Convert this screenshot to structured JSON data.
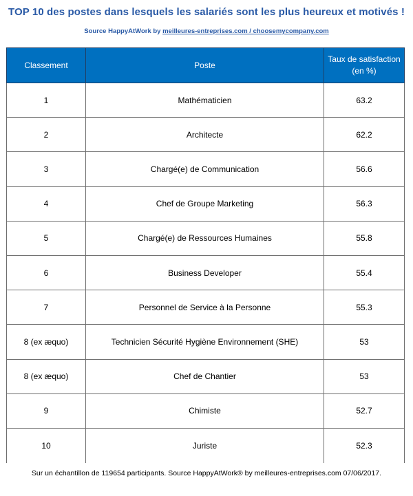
{
  "header": {
    "title": "TOP 10 des postes dans lesquels les salariés sont les plus heureux et motivés !",
    "source_prefix": "Source HappyAtWork by ",
    "source_link": "meilleures-entreprises.com / choosemycompany.com"
  },
  "table": {
    "columns": {
      "rank": "Classement",
      "poste": "Poste",
      "taux_line1": "Taux de satisfaction",
      "taux_line2": "(en %)"
    },
    "rows": [
      {
        "rank": "1",
        "poste": "Mathématicien",
        "taux": "63.2"
      },
      {
        "rank": "2",
        "poste": "Architecte",
        "taux": "62.2"
      },
      {
        "rank": "3",
        "poste": "Chargé(e) de Communication",
        "taux": "56.6"
      },
      {
        "rank": "4",
        "poste": "Chef de Groupe Marketing",
        "taux": "56.3"
      },
      {
        "rank": "5",
        "poste": "Chargé(e) de Ressources Humaines",
        "taux": "55.8"
      },
      {
        "rank": "6",
        "poste": "Business Developer",
        "taux": "55.4"
      },
      {
        "rank": "7",
        "poste": "Personnel de Service à la Personne",
        "taux": "55.3"
      },
      {
        "rank": "8 (ex æquo)",
        "poste": "Technicien Sécurité Hygiène Environnement (SHE)",
        "taux": "53"
      },
      {
        "rank": "8 (ex æquo)",
        "poste": "Chef de Chantier",
        "taux": "53"
      },
      {
        "rank": "9",
        "poste": "Chimiste",
        "taux": "52.7"
      },
      {
        "rank": "10",
        "poste": "Juriste",
        "taux": "52.3"
      }
    ]
  },
  "footer": {
    "text": "Sur un échantillon de 119654 participants. Source HappyAtWork® by meilleures-entreprises.com 07/06/2017."
  }
}
